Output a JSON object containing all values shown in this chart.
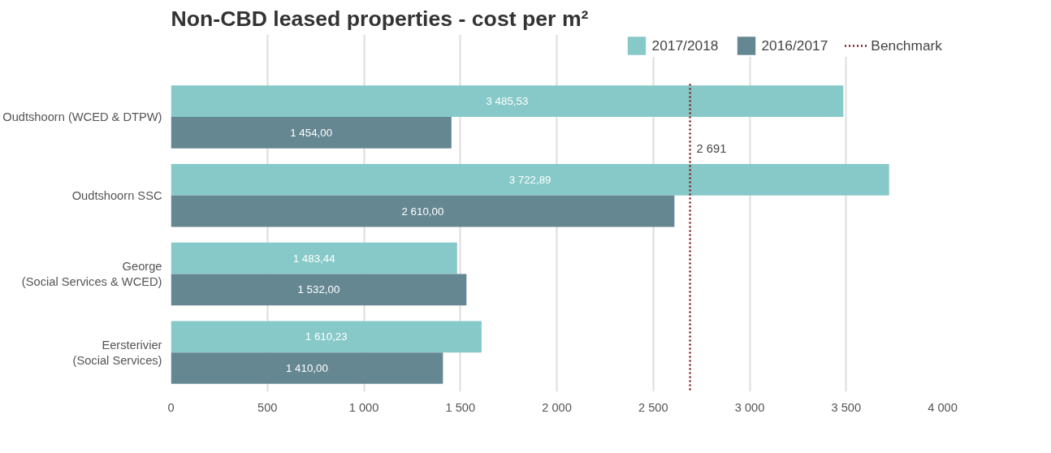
{
  "chart_data": {
    "type": "bar",
    "orientation": "horizontal",
    "title": "Non-CBD leased properties - cost per m²",
    "categories": [
      "Oudtshoorn (WCED & DTPW)",
      "Oudtshoorn SSC",
      "George\n(Social Services & WCED)",
      "Eersterivier\n(Social Services)"
    ],
    "series": [
      {
        "name": "2017/2018",
        "color": "#86c9c8",
        "values": [
          3485.53,
          3722.89,
          1483.44,
          1610.23
        ],
        "value_labels": [
          "3 485,53",
          "3 722,89",
          "1 483,44",
          "1 610,23"
        ]
      },
      {
        "name": "2016/2017",
        "color": "#658792",
        "values": [
          1454.0,
          2610.0,
          1532.0,
          1410.0
        ],
        "value_labels": [
          "1 454,00",
          "2 610,00",
          "1 532,00",
          "1 410,00"
        ]
      }
    ],
    "xlim": [
      0,
      4000
    ],
    "xticks": [
      0,
      500,
      {
        "value": 1000,
        "label": "1 000"
      },
      {
        "value": 1500,
        "label": "1 500"
      },
      {
        "value": 2000,
        "label": "2 000"
      },
      {
        "value": 2500,
        "label": "2 500"
      },
      {
        "value": 3000,
        "label": "3 000"
      },
      {
        "value": 3500,
        "label": "3 500"
      },
      {
        "value": 4000,
        "label": "4 000"
      }
    ],
    "ref_lines": [
      {
        "axis": "x",
        "value": 2691,
        "label": "Benchmark",
        "color": "#7b1c1c",
        "line_style": "dotted"
      }
    ],
    "annotations": [
      {
        "text": "2 691",
        "x": 2691
      }
    ],
    "grid": "x",
    "legend": "top right"
  }
}
